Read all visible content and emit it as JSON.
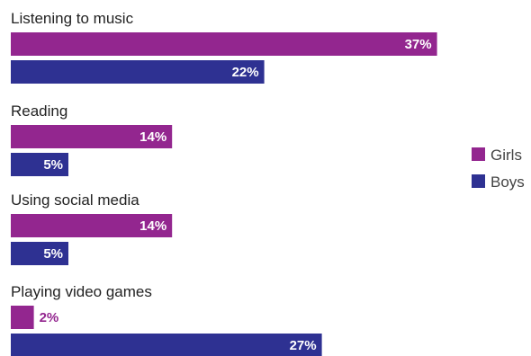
{
  "chart_data": {
    "type": "bar",
    "orientation": "horizontal",
    "categories": [
      "Listening to music",
      "Reading",
      "Using social media",
      "Playing video games"
    ],
    "series": [
      {
        "name": "Girls",
        "values": [
          37,
          14,
          14,
          2
        ],
        "color": "#93268f"
      },
      {
        "name": "Boys",
        "values": [
          22,
          5,
          5,
          27
        ],
        "color": "#2e3192"
      }
    ],
    "value_suffix": "%",
    "xlim": [
      0,
      40
    ],
    "grid": false,
    "legend_position": "right"
  }
}
